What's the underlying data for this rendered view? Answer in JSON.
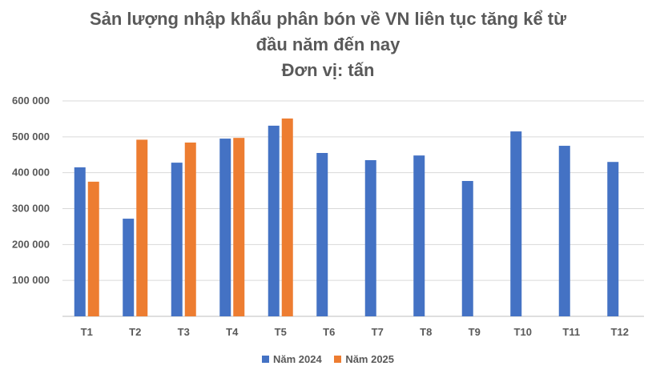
{
  "chart_data": {
    "type": "bar",
    "title_lines": [
      "Sản lượng nhập khẩu phân bón về VN liên tục tăng kể từ",
      "đầu năm đến nay",
      "Đơn vị: tấn"
    ],
    "categories": [
      "T1",
      "T2",
      "T3",
      "T4",
      "T5",
      "T6",
      "T7",
      "T8",
      "T9",
      "T10",
      "T11",
      "T12"
    ],
    "series": [
      {
        "name": "Năm 2024",
        "color": "#4472C4",
        "values": [
          415000,
          272000,
          428000,
          495000,
          531000,
          455000,
          435000,
          448000,
          377000,
          515000,
          475000,
          430000
        ]
      },
      {
        "name": "Năm 2025",
        "color": "#ED7D31",
        "values": [
          375000,
          492000,
          484000,
          497000,
          551000,
          null,
          null,
          null,
          null,
          null,
          null,
          null
        ]
      }
    ],
    "y_ticks": [
      "",
      "100 000",
      "200 000",
      "300 000",
      "400 000",
      "500 000",
      "600 000"
    ],
    "ylim": [
      0,
      600000
    ],
    "grid": true,
    "legend_position": "bottom"
  }
}
